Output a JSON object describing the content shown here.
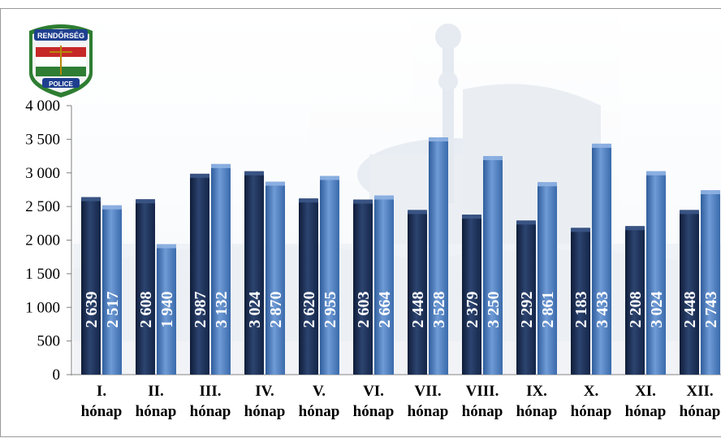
{
  "logo": {
    "top_text": "RENDŐRSÉG",
    "bottom_text": "POLICE"
  },
  "chart_data": {
    "type": "bar",
    "categories": [
      [
        "I.",
        "hónap"
      ],
      [
        "II.",
        "hónap"
      ],
      [
        "III.",
        "hónap"
      ],
      [
        "IV.",
        "hónap"
      ],
      [
        "V.",
        "hónap"
      ],
      [
        "VI.",
        "hónap"
      ],
      [
        "VII.",
        "hónap"
      ],
      [
        "VIII.",
        "hónap"
      ],
      [
        "IX.",
        "hónap"
      ],
      [
        "X.",
        "hónap"
      ],
      [
        "XI.",
        "hónap"
      ],
      [
        "XII.",
        "hónap"
      ]
    ],
    "series": [
      {
        "values": [
          2639,
          2608,
          2987,
          3024,
          2620,
          2603,
          2448,
          2379,
          2292,
          2183,
          2208,
          2448
        ],
        "labels": [
          "2 639",
          "2 608",
          "2 987",
          "3 024",
          "2 620",
          "2 603",
          "2 448",
          "2 379",
          "2 292",
          "2 183",
          "2 208",
          "2 448"
        ],
        "color": "#1c2e52"
      },
      {
        "values": [
          2517,
          1940,
          3132,
          2870,
          2955,
          2664,
          3528,
          3250,
          2861,
          3433,
          3024,
          2743
        ],
        "labels": [
          "2 517",
          "1 940",
          "3 132",
          "2 870",
          "2 955",
          "2 664",
          "3 528",
          "3 250",
          "2 861",
          "3 433",
          "3 024",
          "2 743"
        ],
        "color": "#4f7fc0"
      }
    ],
    "yticks": [
      "0",
      "500",
      "1 000",
      "1 500",
      "2 000",
      "2 500",
      "3 000",
      "3 500",
      "4 000"
    ],
    "ylim": [
      0,
      4000
    ],
    "grid": false,
    "legend": "none",
    "title": "",
    "xlabel": "",
    "ylabel": ""
  }
}
